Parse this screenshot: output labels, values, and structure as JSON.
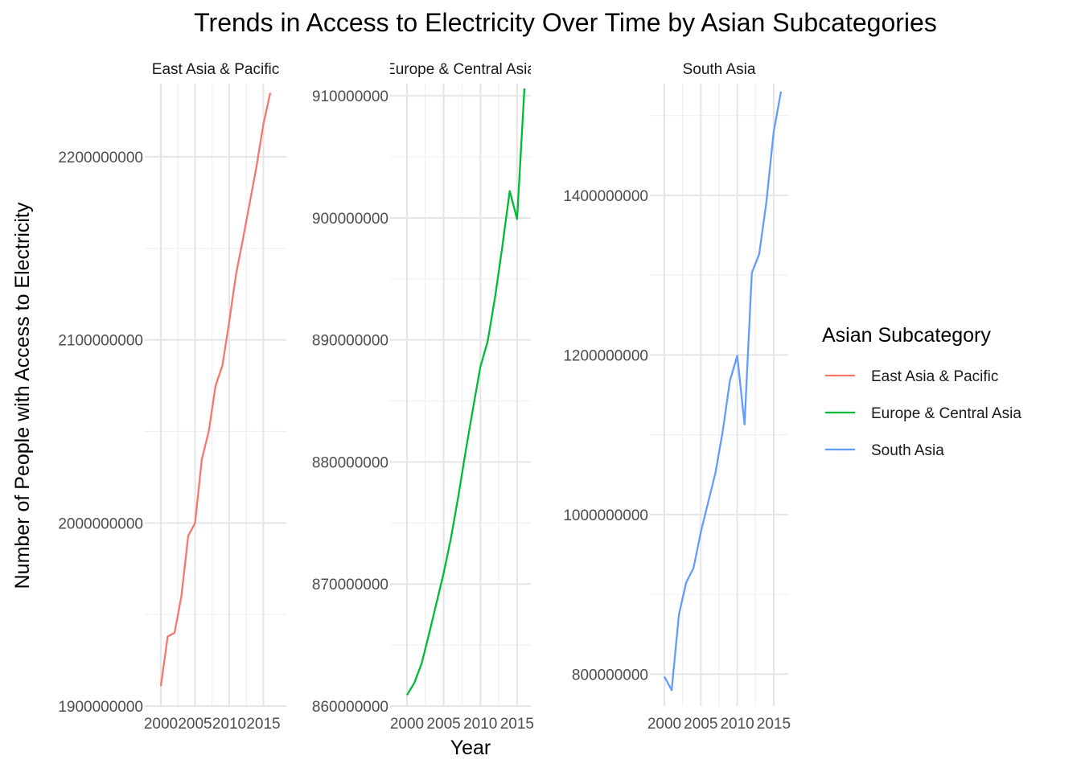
{
  "chart_data": {
    "type": "line",
    "title": "Trends in Access to Electricity Over Time by Asian Subcategories",
    "xlabel": "Year",
    "ylabel": "Number of People with Access to Electricity",
    "legend_title": "Asian Subcategory",
    "legend_position": "right",
    "grid": true,
    "facets": [
      {
        "name": "East Asia & Pacific",
        "strip_label": "East Asia & Pacific",
        "color": "#F8766D",
        "xlim": [
          2000,
          2016
        ],
        "ylim": [
          1900000000,
          2240000000
        ],
        "x_ticks": [
          2000,
          2005,
          2010,
          2015
        ],
        "y_ticks": [
          1900000000,
          2000000000,
          2100000000,
          2200000000
        ],
        "x": [
          2000,
          2001,
          2002,
          2003,
          2004,
          2005,
          2006,
          2007,
          2008,
          2009,
          2010,
          2011,
          2012,
          2013,
          2014,
          2015,
          2016
        ],
        "values": [
          1911000000,
          1938000000,
          1940000000,
          1960000000,
          1993000000,
          2000000000,
          2035000000,
          2050000000,
          2075000000,
          2086000000,
          2110000000,
          2136000000,
          2155000000,
          2175000000,
          2195000000,
          2218000000,
          2235000000
        ]
      },
      {
        "name": "Europe & Central Asia",
        "strip_label": "Europe & Central Asia",
        "color": "#00BA38",
        "xlim": [
          2000,
          2016
        ],
        "ylim": [
          860000000,
          911000000
        ],
        "x_ticks": [
          2000,
          2005,
          2010,
          2015
        ],
        "y_ticks": [
          860000000,
          870000000,
          880000000,
          890000000,
          900000000,
          910000000
        ],
        "x": [
          2000,
          2001,
          2002,
          2003,
          2004,
          2005,
          2006,
          2007,
          2008,
          2009,
          2010,
          2011,
          2012,
          2013,
          2014,
          2015,
          2016
        ],
        "values": [
          860900000,
          861900000,
          863500000,
          865900000,
          868400000,
          870900000,
          873800000,
          877200000,
          880900000,
          884400000,
          887800000,
          889900000,
          893500000,
          897700000,
          902200000,
          899900000,
          910600000
        ]
      },
      {
        "name": "South Asia",
        "strip_label": "South Asia",
        "color": "#619CFF",
        "xlim": [
          2000,
          2016
        ],
        "ylim": [
          760000000,
          1540000000
        ],
        "x_ticks": [
          2000,
          2005,
          2010,
          2015
        ],
        "y_ticks": [
          800000000,
          1000000000,
          1200000000,
          1400000000
        ],
        "x": [
          2000,
          2001,
          2002,
          2003,
          2004,
          2005,
          2006,
          2007,
          2008,
          2009,
          2010,
          2011,
          2012,
          2013,
          2014,
          2015,
          2016
        ],
        "values": [
          797000000,
          780000000,
          875000000,
          915000000,
          933000000,
          978000000,
          1015000000,
          1052000000,
          1104000000,
          1168000000,
          1199000000,
          1113000000,
          1303000000,
          1326000000,
          1392000000,
          1480000000,
          1530000000
        ]
      }
    ]
  }
}
